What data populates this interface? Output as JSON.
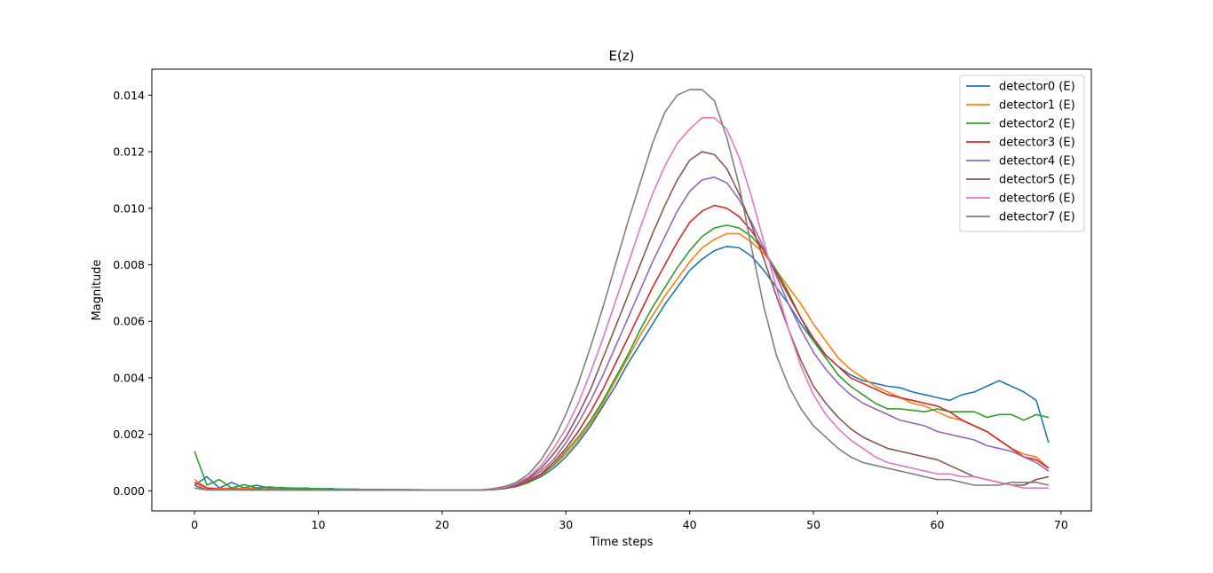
{
  "chart_data": {
    "type": "line",
    "title": "E(z)",
    "xlabel": "Time steps",
    "ylabel": "Magnitude",
    "xlim": [
      -3.45,
      72.45
    ],
    "ylim": [
      -0.00071,
      0.01492
    ],
    "xticks": [
      0,
      10,
      20,
      30,
      40,
      50,
      60,
      70
    ],
    "xtick_labels": [
      "0",
      "10",
      "20",
      "30",
      "40",
      "50",
      "60",
      "70"
    ],
    "yticks": [
      0.0,
      0.002,
      0.004,
      0.006,
      0.008,
      0.01,
      0.012,
      0.014
    ],
    "ytick_labels": [
      "0.000",
      "0.002",
      "0.004",
      "0.006",
      "0.008",
      "0.010",
      "0.012",
      "0.014"
    ],
    "grid": false,
    "legend_position": "top-right",
    "x": [
      0,
      1,
      2,
      3,
      4,
      5,
      6,
      7,
      8,
      9,
      10,
      11,
      12,
      13,
      14,
      15,
      16,
      17,
      18,
      19,
      20,
      21,
      22,
      23,
      24,
      25,
      26,
      27,
      28,
      29,
      30,
      31,
      32,
      33,
      34,
      35,
      36,
      37,
      38,
      39,
      40,
      41,
      42,
      43,
      44,
      45,
      46,
      47,
      48,
      49,
      50,
      51,
      52,
      53,
      54,
      55,
      56,
      57,
      58,
      59,
      60,
      61,
      62,
      63,
      64,
      65,
      66,
      67,
      68,
      69
    ],
    "series": [
      {
        "name": "detector0 (E)",
        "color": "#1f77b4",
        "values": [
          0.0002,
          0.0005,
          0.0001,
          0.0003,
          0.0001,
          0.0002,
          0.0001,
          0.00012,
          8e-05,
          0.0001,
          6e-05,
          8e-05,
          5e-05,
          6e-05,
          4e-05,
          5e-05,
          4e-05,
          4e-05,
          3e-05,
          3e-05,
          3e-05,
          3e-05,
          3e-05,
          3e-05,
          4e-05,
          8e-05,
          0.00015,
          0.0003,
          0.0005,
          0.0008,
          0.0012,
          0.0017,
          0.0023,
          0.003,
          0.0037,
          0.0045,
          0.0052,
          0.0059,
          0.0066,
          0.0072,
          0.0078,
          0.0082,
          0.0085,
          0.00865,
          0.0086,
          0.0083,
          0.0078,
          0.0072,
          0.0066,
          0.0059,
          0.0053,
          0.0048,
          0.0044,
          0.0041,
          0.0039,
          0.0038,
          0.0037,
          0.00365,
          0.0035,
          0.0034,
          0.0033,
          0.0032,
          0.0034,
          0.0035,
          0.0037,
          0.0039,
          0.0037,
          0.0035,
          0.0032,
          0.0017
        ]
      },
      {
        "name": "detector1 (E)",
        "color": "#ff7f0e",
        "values": [
          0.0004,
          0.0001,
          8e-05,
          0.0001,
          8e-05,
          8e-05,
          6e-05,
          6e-05,
          5e-05,
          5e-05,
          4e-05,
          4e-05,
          4e-05,
          4e-05,
          3e-05,
          3e-05,
          3e-05,
          3e-05,
          3e-05,
          3e-05,
          3e-05,
          3e-05,
          3e-05,
          3e-05,
          4e-05,
          8e-05,
          0.00016,
          0.0003,
          0.00055,
          0.0009,
          0.0013,
          0.0018,
          0.0024,
          0.0031,
          0.0039,
          0.0047,
          0.0055,
          0.0062,
          0.0069,
          0.0075,
          0.0081,
          0.0086,
          0.0089,
          0.0091,
          0.0091,
          0.0088,
          0.0084,
          0.0078,
          0.0072,
          0.0066,
          0.0059,
          0.0053,
          0.0047,
          0.0043,
          0.004,
          0.0037,
          0.0035,
          0.0033,
          0.0031,
          0.003,
          0.0028,
          0.0026,
          0.0025,
          0.0023,
          0.0021,
          0.0018,
          0.0015,
          0.0013,
          0.0012,
          0.0008
        ]
      },
      {
        "name": "detector2 (E)",
        "color": "#2ca02c",
        "values": [
          0.0014,
          0.0002,
          0.0004,
          0.0001,
          0.00022,
          0.0001,
          0.00014,
          0.0001,
          0.0001,
          8e-05,
          8e-05,
          6e-05,
          6e-05,
          5e-05,
          5e-05,
          4e-05,
          4e-05,
          4e-05,
          4e-05,
          3e-05,
          3e-05,
          3e-05,
          3e-05,
          3e-05,
          4e-05,
          8e-05,
          0.00016,
          0.0003,
          0.00058,
          0.0009,
          0.0014,
          0.0019,
          0.0025,
          0.0032,
          0.004,
          0.0048,
          0.0057,
          0.0065,
          0.0072,
          0.0079,
          0.0085,
          0.009,
          0.0093,
          0.0094,
          0.0093,
          0.009,
          0.0085,
          0.0078,
          0.007,
          0.0061,
          0.0053,
          0.0047,
          0.0041,
          0.0037,
          0.0034,
          0.0031,
          0.0029,
          0.0029,
          0.00285,
          0.0028,
          0.0029,
          0.0028,
          0.0028,
          0.0028,
          0.0026,
          0.0027,
          0.0027,
          0.0025,
          0.0027,
          0.0026
        ]
      },
      {
        "name": "detector3 (E)",
        "color": "#d62728",
        "values": [
          0.0003,
          0.0001,
          6e-05,
          6e-05,
          5e-05,
          5e-05,
          4e-05,
          4e-05,
          4e-05,
          4e-05,
          3e-05,
          3e-05,
          3e-05,
          3e-05,
          3e-05,
          3e-05,
          3e-05,
          3e-05,
          3e-05,
          3e-05,
          3e-05,
          3e-05,
          3e-05,
          3e-05,
          4e-05,
          8e-05,
          0.00018,
          0.00035,
          0.0006,
          0.001,
          0.0015,
          0.0021,
          0.0028,
          0.0036,
          0.0045,
          0.0054,
          0.0063,
          0.0072,
          0.008,
          0.0088,
          0.0095,
          0.0099,
          0.0101,
          0.01,
          0.0097,
          0.0092,
          0.0085,
          0.0077,
          0.0069,
          0.0061,
          0.0054,
          0.0048,
          0.0044,
          0.004,
          0.0038,
          0.0036,
          0.0034,
          0.0033,
          0.0032,
          0.0031,
          0.003,
          0.0028,
          0.0025,
          0.0023,
          0.0021,
          0.0018,
          0.0015,
          0.0012,
          0.0011,
          0.0008
        ]
      },
      {
        "name": "detector4 (E)",
        "color": "#9467bd",
        "values": [
          0.0001,
          5e-05,
          5e-05,
          4e-05,
          4e-05,
          4e-05,
          4e-05,
          3e-05,
          3e-05,
          3e-05,
          3e-05,
          3e-05,
          3e-05,
          3e-05,
          3e-05,
          3e-05,
          3e-05,
          3e-05,
          3e-05,
          3e-05,
          3e-05,
          3e-05,
          3e-05,
          3e-05,
          4e-05,
          9e-05,
          0.0002,
          0.0004,
          0.0007,
          0.0011,
          0.0017,
          0.0024,
          0.0032,
          0.0041,
          0.0051,
          0.0061,
          0.0071,
          0.0081,
          0.009,
          0.0099,
          0.0106,
          0.011,
          0.0111,
          0.0109,
          0.0103,
          0.0095,
          0.0086,
          0.0076,
          0.0066,
          0.0057,
          0.0049,
          0.0043,
          0.0038,
          0.0034,
          0.0031,
          0.0029,
          0.0027,
          0.0025,
          0.0024,
          0.0023,
          0.0021,
          0.002,
          0.0019,
          0.0018,
          0.0016,
          0.0015,
          0.0014,
          0.0012,
          0.001,
          0.0007
        ]
      },
      {
        "name": "detector5 (E)",
        "color": "#8c564b",
        "values": [
          0.0002,
          4e-05,
          4e-05,
          4e-05,
          4e-05,
          3e-05,
          3e-05,
          3e-05,
          3e-05,
          3e-05,
          3e-05,
          3e-05,
          3e-05,
          3e-05,
          3e-05,
          3e-05,
          3e-05,
          3e-05,
          3e-05,
          3e-05,
          3e-05,
          3e-05,
          3e-05,
          3e-05,
          5e-05,
          0.0001,
          0.00022,
          0.00045,
          0.0008,
          0.0013,
          0.0019,
          0.0027,
          0.0036,
          0.0047,
          0.0058,
          0.0069,
          0.008,
          0.0091,
          0.0101,
          0.011,
          0.0117,
          0.012,
          0.0119,
          0.0114,
          0.0105,
          0.0094,
          0.0082,
          0.0069,
          0.0057,
          0.0046,
          0.0037,
          0.0031,
          0.0026,
          0.0022,
          0.0019,
          0.0017,
          0.0015,
          0.0014,
          0.0013,
          0.0012,
          0.0011,
          0.0009,
          0.0007,
          0.0005,
          0.0004,
          0.0003,
          0.0002,
          0.0002,
          0.0004,
          0.0005
        ]
      },
      {
        "name": "detector6 (E)",
        "color": "#e377c2",
        "values": [
          0.0001,
          4e-05,
          4e-05,
          4e-05,
          3e-05,
          3e-05,
          3e-05,
          3e-05,
          3e-05,
          3e-05,
          3e-05,
          3e-05,
          3e-05,
          3e-05,
          3e-05,
          3e-05,
          3e-05,
          3e-05,
          3e-05,
          3e-05,
          3e-05,
          3e-05,
          3e-05,
          3e-05,
          6e-05,
          0.00012,
          0.00026,
          0.0005,
          0.0009,
          0.0015,
          0.0022,
          0.0031,
          0.0042,
          0.0054,
          0.0067,
          0.008,
          0.0093,
          0.0105,
          0.0115,
          0.0123,
          0.0128,
          0.0132,
          0.0132,
          0.0128,
          0.0118,
          0.0104,
          0.0088,
          0.0072,
          0.0057,
          0.0044,
          0.0034,
          0.0027,
          0.0022,
          0.0018,
          0.0015,
          0.0012,
          0.001,
          0.0009,
          0.0008,
          0.0007,
          0.0006,
          0.0006,
          0.0005,
          0.0005,
          0.0004,
          0.0003,
          0.0002,
          0.0001,
          0.0001,
          0.0001
        ]
      },
      {
        "name": "detector7 (E)",
        "color": "#7f7f7f",
        "values": [
          0.0001,
          3e-05,
          3e-05,
          3e-05,
          3e-05,
          3e-05,
          3e-05,
          3e-05,
          3e-05,
          3e-05,
          3e-05,
          3e-05,
          3e-05,
          3e-05,
          3e-05,
          3e-05,
          3e-05,
          3e-05,
          3e-05,
          3e-05,
          3e-05,
          3e-05,
          3e-05,
          3e-05,
          7e-05,
          0.00015,
          0.0003,
          0.0006,
          0.0011,
          0.0018,
          0.0027,
          0.0038,
          0.0051,
          0.0065,
          0.008,
          0.0095,
          0.0109,
          0.0123,
          0.0134,
          0.014,
          0.0142,
          0.0142,
          0.0138,
          0.0125,
          0.0108,
          0.0086,
          0.0065,
          0.0048,
          0.0037,
          0.0029,
          0.0023,
          0.0019,
          0.0015,
          0.0012,
          0.001,
          0.0009,
          0.0008,
          0.0007,
          0.0006,
          0.0005,
          0.0004,
          0.0004,
          0.0003,
          0.0002,
          0.0002,
          0.0002,
          0.0003,
          0.0003,
          0.0003,
          0.0002
        ]
      }
    ]
  }
}
